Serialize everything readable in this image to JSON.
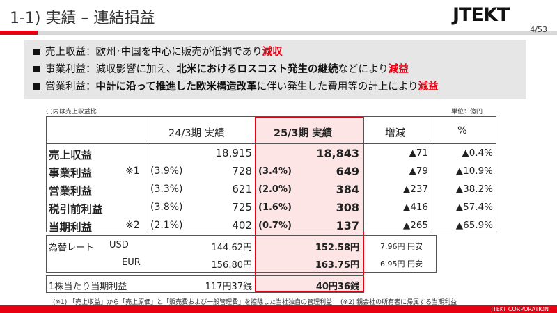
{
  "header": {
    "title": "1-1) 実績 – 連結損益",
    "logo": "JTEKT",
    "page": "4/53"
  },
  "summary": {
    "line1": {
      "label": "売上収益：",
      "text": "欧州･中国を中心に販売が低調であり",
      "emph": "減収"
    },
    "line2": {
      "label": "事業利益：",
      "text1": "減収影響に加え、",
      "bold": "北米におけるロスコスト発生の継続",
      "text2": "などにより",
      "emph": "減益"
    },
    "line3": {
      "label": "営業利益：",
      "bold": "中計に沿って推進した欧米構造改革",
      "text": "に伴い発生した費用等の計上により",
      "emph": "減益"
    }
  },
  "table": {
    "note": "( )内は売上収益比",
    "unit": "単位：億円",
    "headers": {
      "prev": "24/3期 実績",
      "curr": "25/3期 実績",
      "diff": "増減",
      "pct": "%"
    },
    "rows": [
      {
        "label": "売上収益",
        "mark": "",
        "prev_ratio": "",
        "prev": "18,915",
        "curr_ratio": "",
        "curr": "18,843",
        "diff": "▲71",
        "pct": "▲0.4%"
      },
      {
        "label": "事業利益",
        "mark": "※1",
        "prev_ratio": "(3.9%)",
        "prev": "728",
        "curr_ratio": "(3.4%)",
        "curr": "649",
        "diff": "▲79",
        "pct": "▲10.9%"
      },
      {
        "label": "営業利益",
        "mark": "",
        "prev_ratio": "(3.3%)",
        "prev": "621",
        "curr_ratio": "(2.0%)",
        "curr": "384",
        "diff": "▲237",
        "pct": "▲38.2%"
      },
      {
        "label": "税引前利益",
        "mark": "",
        "prev_ratio": "(3.8%)",
        "prev": "725",
        "curr_ratio": "(1.6%)",
        "curr": "308",
        "diff": "▲416",
        "pct": "▲57.4%"
      },
      {
        "label": "当期利益",
        "mark": "※2",
        "prev_ratio": "(2.1%)",
        "prev": "402",
        "curr_ratio": "(0.7%)",
        "curr": "137",
        "diff": "▲265",
        "pct": "▲65.9%"
      }
    ],
    "fx": {
      "label": "為替レート",
      "usd": {
        "ccy": "USD",
        "prev": "144.62円",
        "curr": "152.58円",
        "diff": "7.96円 円安"
      },
      "eur": {
        "ccy": "EUR",
        "prev": "156.80円",
        "curr": "163.75円",
        "diff": "6.95円 円安"
      }
    },
    "eps": {
      "label": "1株当たり当期利益",
      "prev": "117円37銭",
      "curr": "40円36銭"
    }
  },
  "footnote": "(※1) 「売上収益」から「売上原価」と「販売費および一般管理費」を控除した当社独自の管理利益　 (※2) 親会社の所有者に帰属する当期利益",
  "footer": "JTEKT CORPORATION",
  "colors": {
    "accent": "#e60012",
    "highlight_bg": "#fde5e5",
    "summary_bg": "#e6e6e6"
  }
}
